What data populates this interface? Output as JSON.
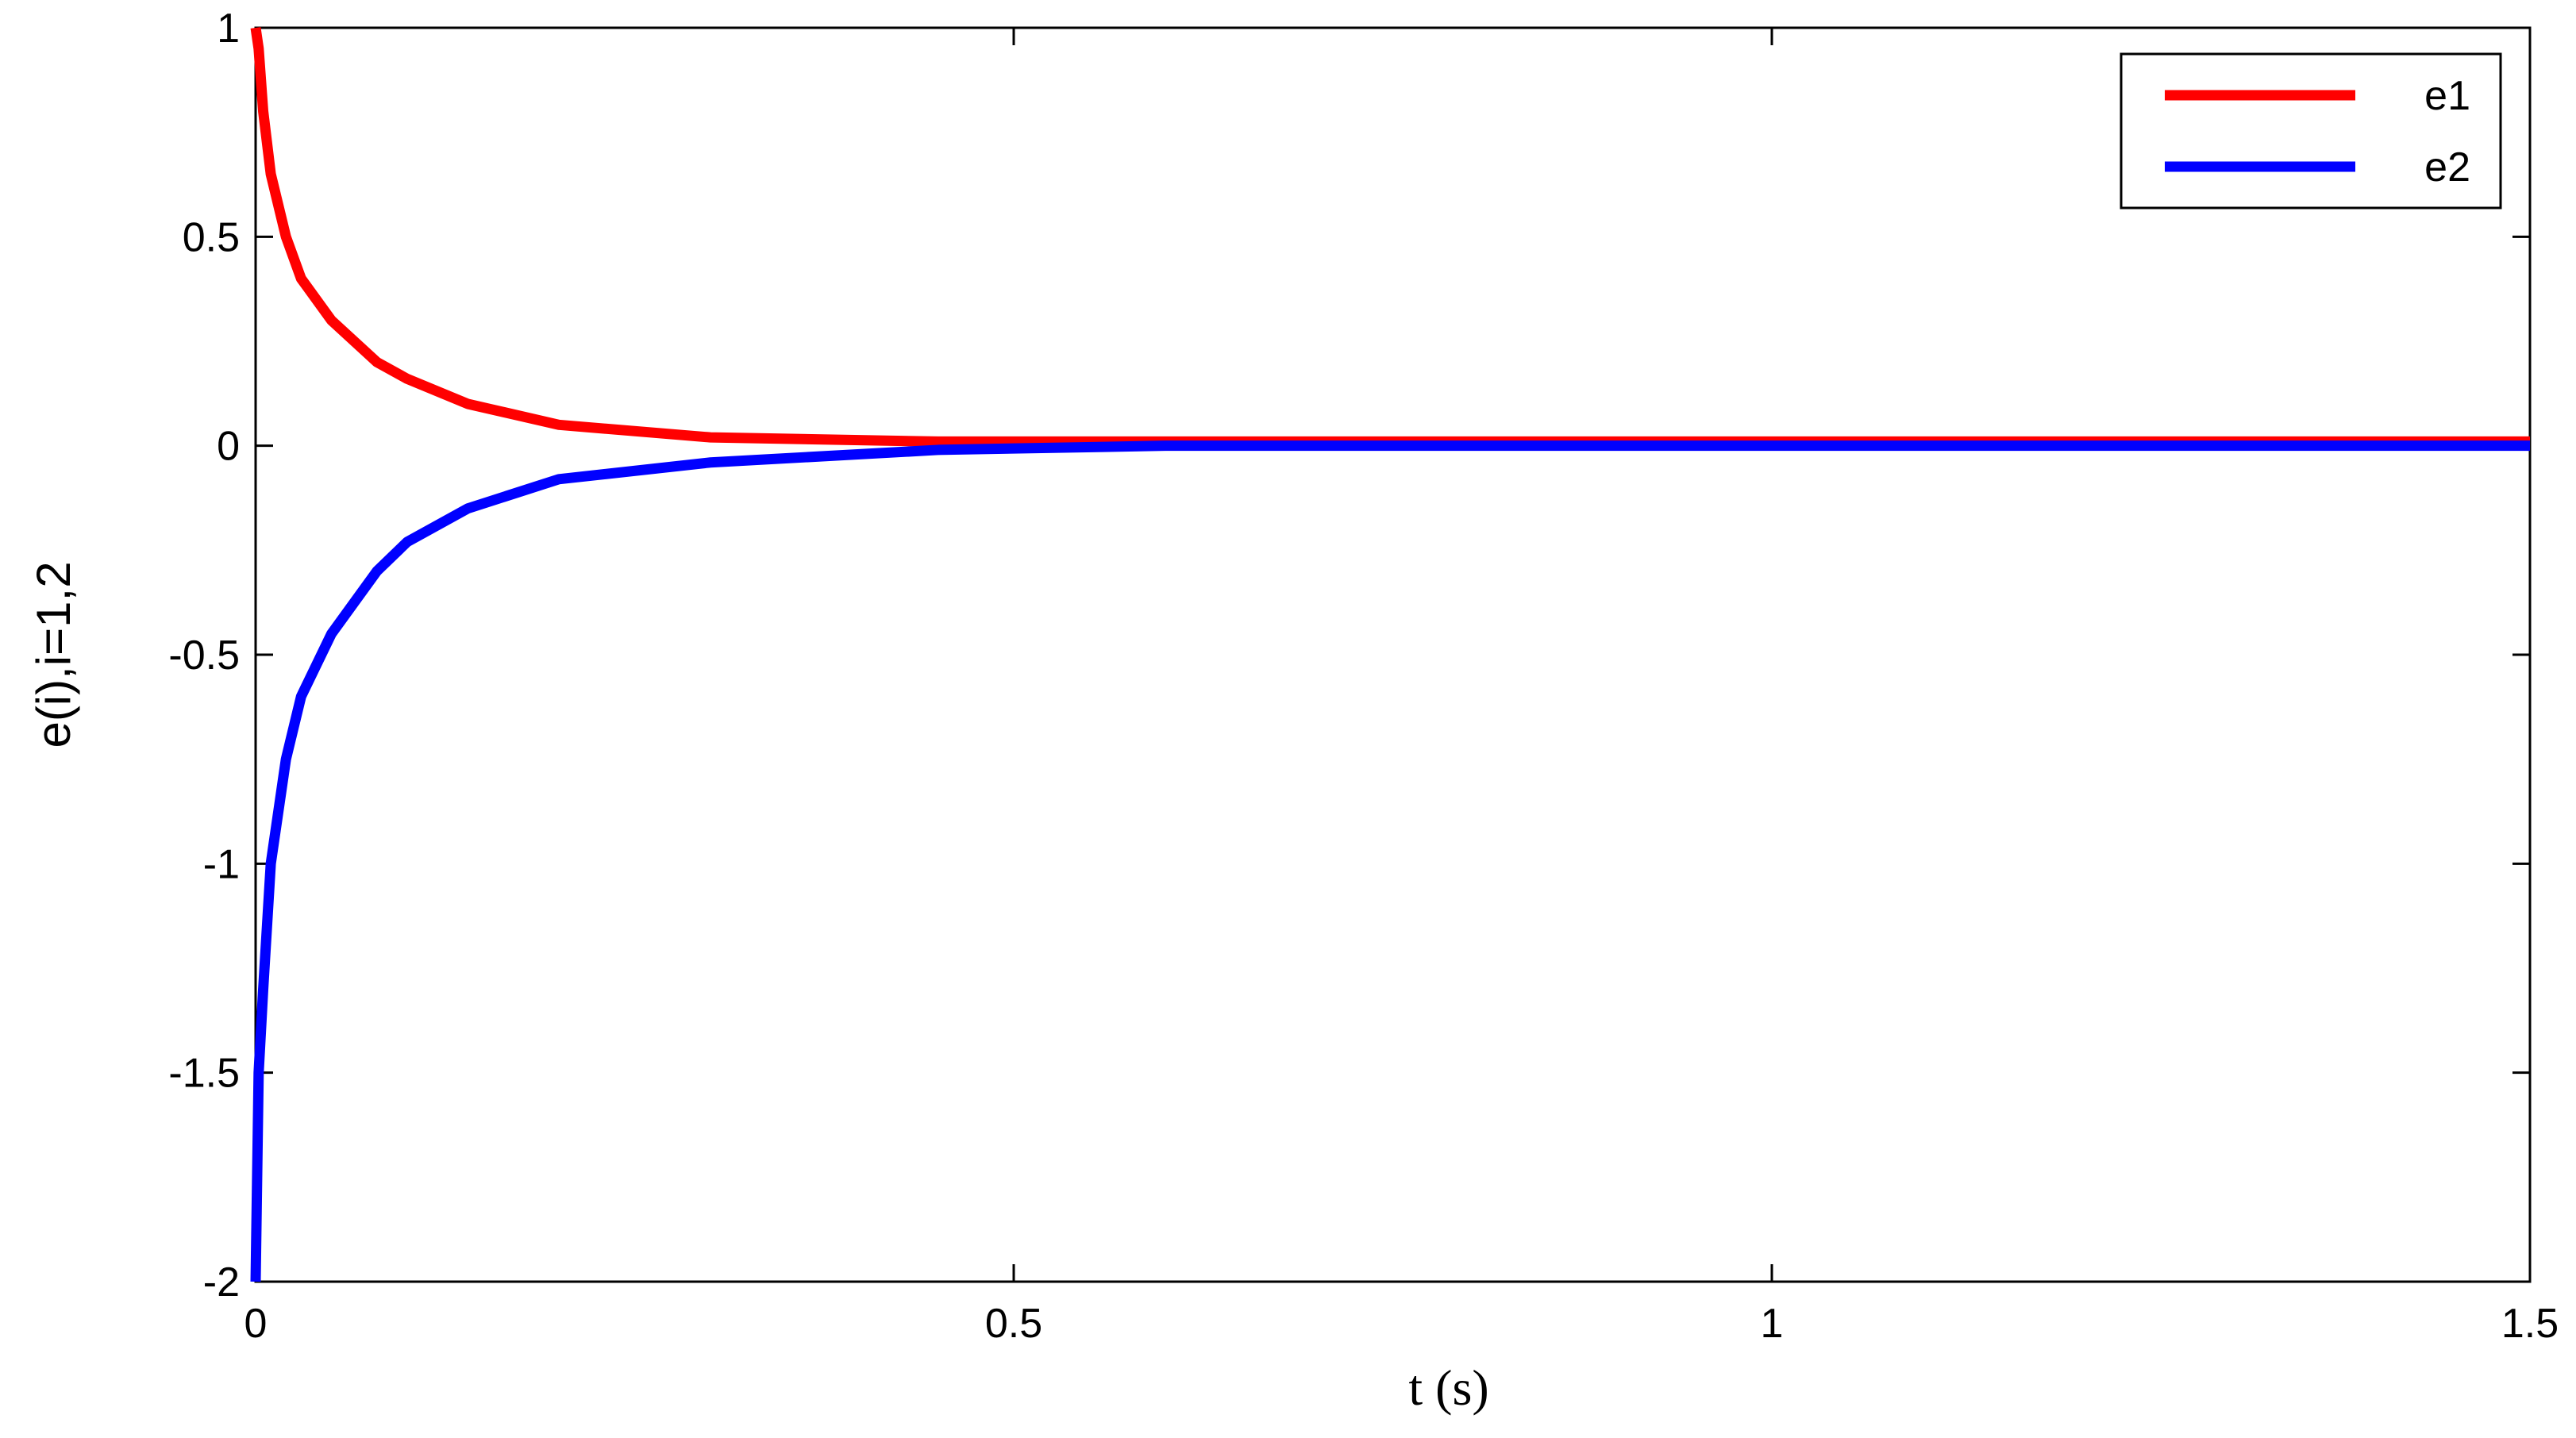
{
  "chart_data": {
    "type": "line",
    "x_label": "t (s)",
    "y_label": "e(i),i=1,2",
    "x": [
      0,
      0.002,
      0.005,
      0.01,
      0.02,
      0.03,
      0.05,
      0.08,
      0.1,
      0.14,
      0.2,
      0.3,
      0.45,
      0.6,
      1.0,
      1.5
    ],
    "series": [
      {
        "name": "e1",
        "color": "#ff0000",
        "values": [
          1,
          0.95,
          0.8,
          0.65,
          0.5,
          0.4,
          0.3,
          0.2,
          0.16,
          0.1,
          0.05,
          0.02,
          0.01,
          0.01,
          0.01,
          0.01
        ]
      },
      {
        "name": "e2",
        "color": "#0000ff",
        "values": [
          -2,
          -1.5,
          -1.3,
          -1.0,
          -0.75,
          -0.6,
          -0.45,
          -0.3,
          -0.23,
          -0.15,
          -0.08,
          -0.04,
          -0.01,
          0,
          0,
          0
        ]
      }
    ],
    "xlim": [
      0,
      1.5
    ],
    "ylim": [
      -2,
      1
    ],
    "xticks": [
      0,
      0.5,
      1,
      1.5
    ],
    "yticks": [
      -2,
      -1.5,
      -1,
      -0.5,
      0,
      0.5,
      1
    ],
    "legend": "upper right",
    "grid": false
  }
}
